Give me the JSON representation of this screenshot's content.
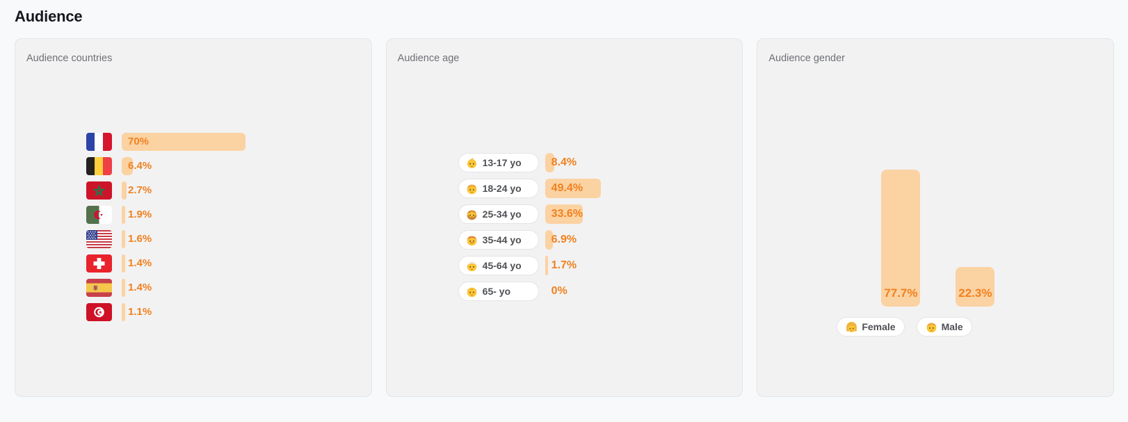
{
  "title": "Audience",
  "colors": {
    "bar_fill": "#FBD2A2",
    "accent_text": "#F0811F",
    "panel_bg": "#F2F2F3",
    "page_bg": "#F8F9FB"
  },
  "chart_data": [
    {
      "type": "bar",
      "orientation": "horizontal",
      "title": "Audience countries",
      "unit": "%",
      "categories": [
        "France",
        "Belgium",
        "Morocco",
        "Algeria",
        "United States",
        "Switzerland",
        "Spain",
        "Tunisia"
      ],
      "values": [
        70,
        6.4,
        2.7,
        1.9,
        1.6,
        1.4,
        1.4,
        1.1
      ],
      "labels": [
        "70%",
        "6.4%",
        "2.7%",
        "1.9%",
        "1.6%",
        "1.4%",
        "1.4%",
        "1.1%"
      ],
      "icons": [
        "flag-france",
        "flag-belgium",
        "flag-morocco",
        "flag-algeria",
        "flag-united-states",
        "flag-switzerland",
        "flag-spain",
        "flag-tunisia"
      ]
    },
    {
      "type": "bar",
      "orientation": "horizontal",
      "title": "Audience age",
      "unit": "%",
      "categories": [
        "13-17 yo",
        "18-24 yo",
        "25-34 yo",
        "35-44 yo",
        "45-64 yo",
        "65- yo"
      ],
      "values": [
        8.4,
        49.4,
        33.6,
        6.9,
        1.7,
        0
      ],
      "labels": [
        "8.4%",
        "49.4%",
        "33.6%",
        "6.9%",
        "1.7%",
        "0%"
      ],
      "icons": [
        "baby-emoji",
        "boy-emoji",
        "bearded-man-emoji",
        "mustache-man-emoji",
        "white-haired-man-emoji",
        "old-man-emoji"
      ]
    },
    {
      "type": "bar",
      "orientation": "vertical",
      "title": "Audience gender",
      "unit": "%",
      "categories": [
        "Female",
        "Male"
      ],
      "values": [
        77.7,
        22.3
      ],
      "labels": [
        "77.7%",
        "22.3%"
      ],
      "icons": [
        "girl-emoji",
        "boy-emoji"
      ]
    }
  ]
}
